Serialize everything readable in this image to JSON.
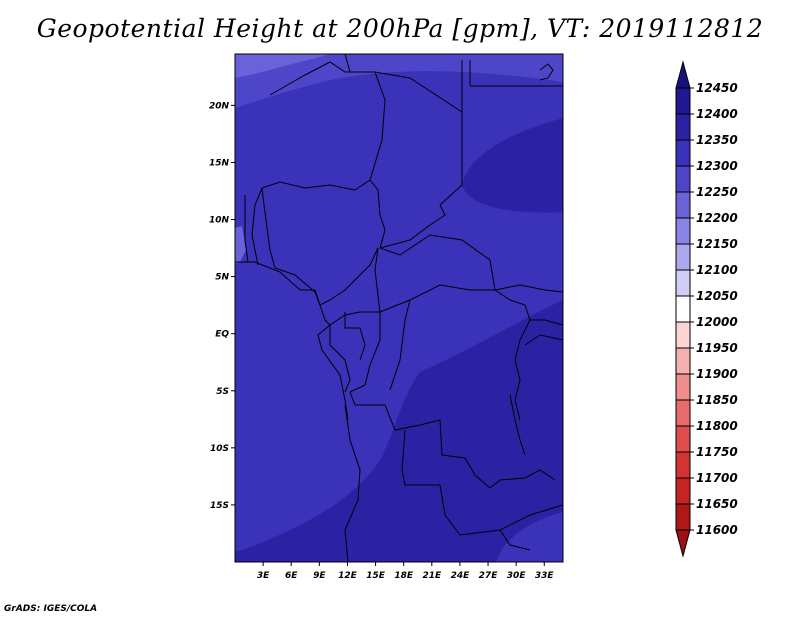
{
  "title": "Geopotential Height at 200hPa [gpm], VT: 2019112812",
  "credit": "GrADS: IGES/COLA",
  "lat_labels": [
    "20N",
    "15N",
    "10N",
    "5N",
    "EQ",
    "5S",
    "10S",
    "15S"
  ],
  "lat_values": [
    20,
    15,
    10,
    5,
    0,
    -5,
    -10,
    -15
  ],
  "lon_labels": [
    "3E",
    "6E",
    "9E",
    "12E",
    "15E",
    "18E",
    "21E",
    "24E",
    "27E",
    "30E",
    "33E"
  ],
  "lon_values": [
    3,
    6,
    9,
    12,
    15,
    18,
    21,
    24,
    27,
    30,
    33
  ],
  "map_extent": {
    "lon_min": 0,
    "lon_max": 35,
    "lat_min": -20,
    "lat_max": 24.5
  },
  "colorbar": {
    "levels": [
      "12450",
      "12400",
      "12350",
      "12300",
      "12250",
      "12200",
      "12150",
      "12100",
      "12050",
      "12000",
      "11950",
      "11900",
      "11850",
      "11800",
      "11750",
      "11700",
      "11650",
      "11600"
    ],
    "colors": [
      "#1a0f80",
      "#1f1890",
      "#2a22a3",
      "#3a32b8",
      "#4e46c8",
      "#6a62d8",
      "#8a84e4",
      "#aca8ee",
      "#d0cef6",
      "#ffffff",
      "#fbd4d4",
      "#f5b0b0",
      "#ee8e8e",
      "#e66c6c",
      "#dd4e4e",
      "#d23434",
      "#c42424",
      "#b01818",
      "#a01010"
    ]
  },
  "field_colors": {
    "deep": "#2a22a3",
    "mid": "#3a32b8",
    "light": "#4e46c8",
    "lighter": "#6a62d8"
  }
}
